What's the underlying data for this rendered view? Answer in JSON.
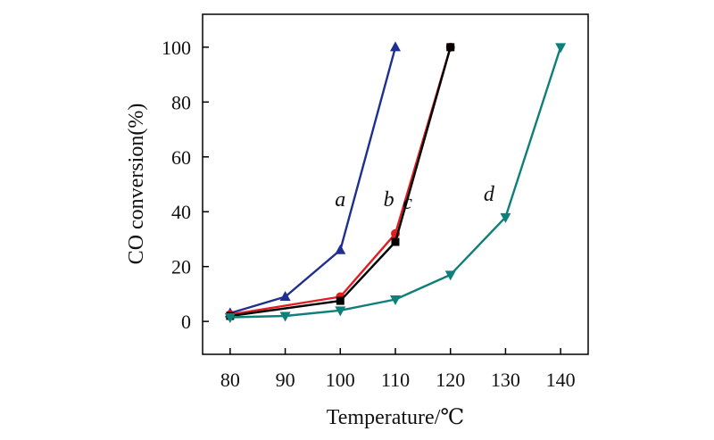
{
  "chart_data": {
    "type": "line",
    "title": "",
    "xlabel": "Temperature/℃",
    "ylabel": "CO conversion(%)",
    "xlim": [
      75,
      145
    ],
    "ylim": [
      -12,
      112
    ],
    "xticks": [
      80,
      90,
      100,
      110,
      120,
      130,
      140
    ],
    "yticks": [
      0,
      20,
      40,
      60,
      80,
      100
    ],
    "xtick_labels": [
      "80",
      "90",
      "100",
      "110",
      "120",
      "130",
      "140"
    ],
    "ytick_labels": [
      "0",
      "20",
      "40",
      "60",
      "80",
      "100"
    ],
    "grid": false,
    "series": [
      {
        "name": "a",
        "color": "#1f2f8f",
        "marker": "triangle-up",
        "x": [
          80,
          90,
          100,
          110
        ],
        "y": [
          3,
          9,
          26,
          100
        ],
        "label_at": [
          100,
          42
        ]
      },
      {
        "name": "b",
        "color": "#e31b23",
        "marker": "circle",
        "x": [
          80,
          100,
          110,
          120
        ],
        "y": [
          2.5,
          9,
          32,
          100
        ],
        "label_at": [
          108.8,
          42
        ]
      },
      {
        "name": "c",
        "color": "#000000",
        "marker": "square",
        "x": [
          80,
          100,
          110,
          120
        ],
        "y": [
          2,
          7.5,
          29,
          100
        ],
        "label_at": [
          112.2,
          41
        ]
      },
      {
        "name": "d",
        "color": "#0f7f7a",
        "marker": "triangle-down",
        "x": [
          80,
          90,
          100,
          110,
          120,
          130,
          140
        ],
        "y": [
          1.5,
          2,
          4,
          8,
          17,
          38,
          100
        ],
        "label_at": [
          127,
          44
        ]
      }
    ]
  }
}
